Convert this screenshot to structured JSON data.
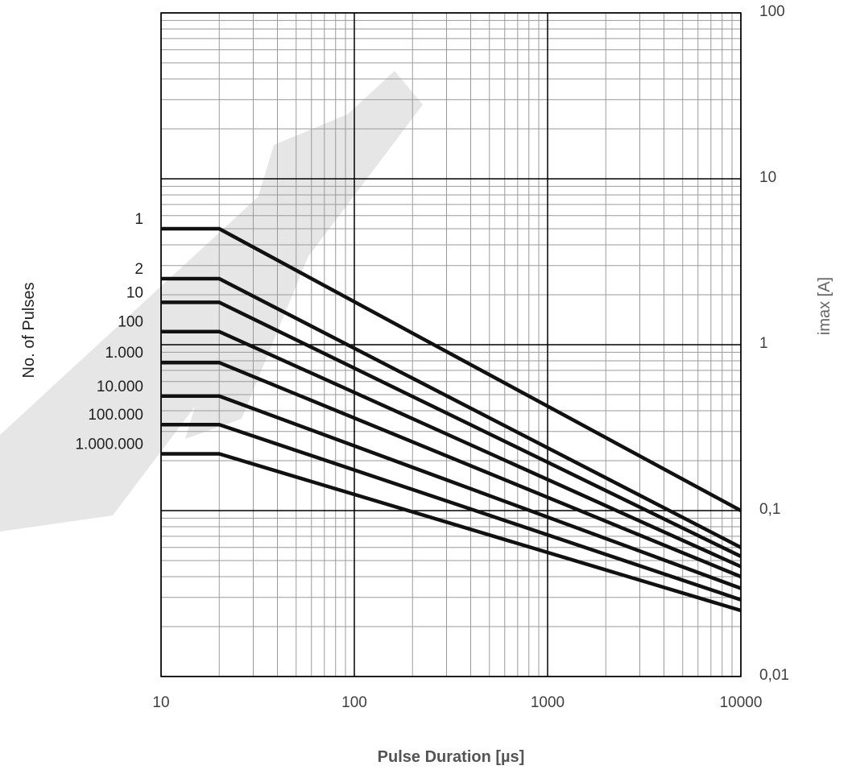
{
  "chart_data": {
    "type": "line",
    "xlabel": "Pulse Duration [µs]",
    "ylabel_left": "No. of Pulses",
    "ylabel_right": "imax [A]",
    "x_scale": "log",
    "y_scale": "log",
    "xlim": [
      10,
      10000
    ],
    "ylim": [
      0.01,
      100
    ],
    "x_tick_labels": [
      {
        "value": 10,
        "label": "10"
      },
      {
        "value": 100,
        "label": "100"
      },
      {
        "value": 1000,
        "label": "1000"
      },
      {
        "value": 10000,
        "label": "10000"
      }
    ],
    "y_tick_labels": [
      {
        "value": 100,
        "label": "100"
      },
      {
        "value": 10,
        "label": "10"
      },
      {
        "value": 1,
        "label": "1"
      },
      {
        "value": 0.1,
        "label": "0,1"
      },
      {
        "value": 0.01,
        "label": "0,01"
      }
    ],
    "grid": true,
    "series": [
      {
        "name": "1",
        "x": [
          10,
          20,
          10000
        ],
        "y": [
          5.0,
          5.0,
          0.1
        ]
      },
      {
        "name": "2",
        "x": [
          10,
          20,
          10000
        ],
        "y": [
          2.5,
          2.5,
          0.06
        ]
      },
      {
        "name": "10",
        "x": [
          10,
          20,
          10000
        ],
        "y": [
          1.8,
          1.8,
          0.053
        ]
      },
      {
        "name": "100",
        "x": [
          10,
          20,
          10000
        ],
        "y": [
          1.2,
          1.2,
          0.046
        ]
      },
      {
        "name": "1.000",
        "x": [
          10,
          20,
          10000
        ],
        "y": [
          0.78,
          0.78,
          0.04
        ]
      },
      {
        "name": "10.000",
        "x": [
          10,
          20,
          10000
        ],
        "y": [
          0.49,
          0.49,
          0.034
        ]
      },
      {
        "name": "100.000",
        "x": [
          10,
          20,
          10000
        ],
        "y": [
          0.33,
          0.33,
          0.029
        ]
      },
      {
        "name": "1.000.000",
        "x": [
          10,
          20,
          10000
        ],
        "y": [
          0.22,
          0.22,
          0.025
        ]
      }
    ]
  }
}
